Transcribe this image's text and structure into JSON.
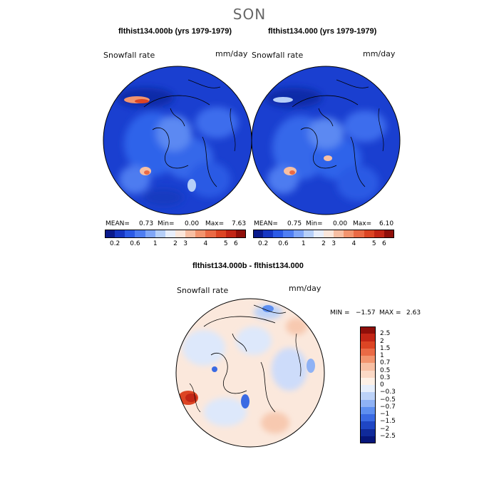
{
  "season": "SON",
  "chart_data": [
    {
      "type": "heatmap",
      "title": "flthist134.000b (yrs 1979-1979)",
      "variable": "Snowfall rate",
      "units": "mm/day",
      "stats": {
        "mean_label": "MEAN=",
        "mean": "0.73",
        "min_label": "Min=",
        "min": "0.00",
        "max_label": "Max=",
        "max": "7.63"
      },
      "colorbar": {
        "levels": [
          "0.2",
          "0.6",
          "1",
          "2",
          "3",
          "4",
          "5",
          "6"
        ],
        "colors": [
          "#0a1a8c",
          "#1636c2",
          "#2b5ae6",
          "#4f7ef2",
          "#80a6f7",
          "#b6cff8",
          "#e8eefb",
          "#fbe6da",
          "#f7bfa3",
          "#f2946e",
          "#ea6a45",
          "#dc4524",
          "#c22616",
          "#8f0f0a"
        ]
      }
    },
    {
      "type": "heatmap",
      "title": "flthist134.000 (yrs 1979-1979)",
      "variable": "Snowfall rate",
      "units": "mm/day",
      "stats": {
        "mean_label": "MEAN=",
        "mean": "0.75",
        "min_label": "Min=",
        "min": "0.00",
        "max_label": "Max=",
        "max": "6.10"
      },
      "colorbar": {
        "levels": [
          "0.2",
          "0.6",
          "1",
          "2",
          "3",
          "4",
          "5",
          "6"
        ],
        "colors": [
          "#0a1a8c",
          "#1636c2",
          "#2b5ae6",
          "#4f7ef2",
          "#80a6f7",
          "#b6cff8",
          "#e8eefb",
          "#fbe6da",
          "#f7bfa3",
          "#f2946e",
          "#ea6a45",
          "#dc4524",
          "#c22616",
          "#8f0f0a"
        ]
      }
    },
    {
      "type": "heatmap",
      "title": "flthist134.000b - flthist134.000",
      "variable": "Snowfall rate",
      "units": "mm/day",
      "stats": {
        "min_label": "MIN =",
        "min": "−1.57",
        "max_label": "MAX =",
        "max": "2.63"
      },
      "colorbar": {
        "levels": [
          "2.5",
          "2",
          "1.5",
          "1",
          "0.7",
          "0.5",
          "0.3",
          "0",
          "−0.3",
          "−0.5",
          "−0.7",
          "−1",
          "−1.5",
          "−2",
          "−2.5"
        ],
        "colors": [
          "#8f0f0a",
          "#c22616",
          "#dc4524",
          "#ea6a45",
          "#f2946e",
          "#f7bfa3",
          "#fbd9c6",
          "#fdf0e6",
          "#e6eefb",
          "#bcd2f8",
          "#8fb2f5",
          "#5e8ff0",
          "#3a6ae3",
          "#1f46c4",
          "#102a9a",
          "#06167a"
        ]
      }
    }
  ]
}
